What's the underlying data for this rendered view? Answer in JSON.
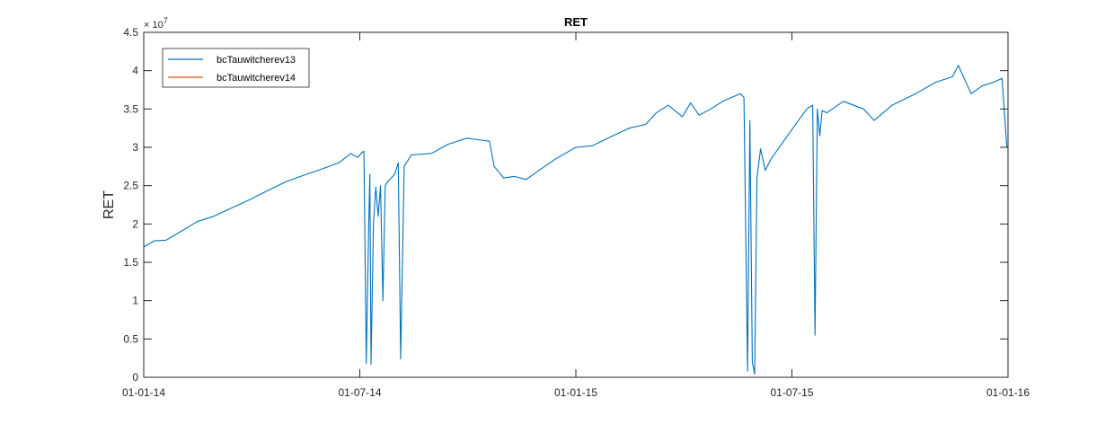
{
  "chart_data": {
    "type": "line",
    "title": "RET",
    "xlabel": "",
    "ylabel": "RET",
    "y_exponent_base": "× 10",
    "y_exponent_power": "7",
    "x_ticks": [
      "01-01-14",
      "01-07-14",
      "01-01-15",
      "01-07-15",
      "01-01-16"
    ],
    "y_ticks": [
      "0",
      "0.5",
      "1",
      "1.5",
      "2",
      "2.5",
      "3",
      "3.5",
      "4",
      "4.5"
    ],
    "ylim": [
      0,
      45000000
    ],
    "xlim": [
      "2014-01-01",
      "2016-01-01"
    ],
    "grid": false,
    "legend_position": "top-left",
    "series": [
      {
        "name": "bcTauwitcherev13",
        "color": "#0072BD",
        "points": [
          [
            "2014-01-01",
            17000000
          ],
          [
            "2014-01-10",
            17800000
          ],
          [
            "2014-01-20",
            17900000
          ],
          [
            "2014-02-01",
            19000000
          ],
          [
            "2014-02-15",
            20300000
          ],
          [
            "2014-03-01",
            21000000
          ],
          [
            "2014-03-15",
            22000000
          ],
          [
            "2014-04-01",
            23200000
          ],
          [
            "2014-04-15",
            24300000
          ],
          [
            "2014-05-01",
            25500000
          ],
          [
            "2014-05-15",
            26300000
          ],
          [
            "2014-06-01",
            27200000
          ],
          [
            "2014-06-15",
            28000000
          ],
          [
            "2014-06-25",
            29200000
          ],
          [
            "2014-06-28",
            28900000
          ],
          [
            "2014-07-01",
            28700000
          ],
          [
            "2014-07-04",
            29300000
          ],
          [
            "2014-07-06",
            29500000
          ],
          [
            "2014-07-08",
            1800000
          ],
          [
            "2014-07-10",
            20000000
          ],
          [
            "2014-07-11",
            26500000
          ],
          [
            "2014-07-12",
            1700000
          ],
          [
            "2014-07-14",
            20000000
          ],
          [
            "2014-07-16",
            24800000
          ],
          [
            "2014-07-18",
            21000000
          ],
          [
            "2014-07-20",
            25000000
          ],
          [
            "2014-07-22",
            10000000
          ],
          [
            "2014-07-24",
            25000000
          ],
          [
            "2014-07-26",
            25500000
          ],
          [
            "2014-08-01",
            26500000
          ],
          [
            "2014-08-04",
            28000000
          ],
          [
            "2014-08-06",
            2400000
          ],
          [
            "2014-08-09",
            27500000
          ],
          [
            "2014-08-15",
            29000000
          ],
          [
            "2014-09-01",
            29200000
          ],
          [
            "2014-09-15",
            30400000
          ],
          [
            "2014-10-01",
            31200000
          ],
          [
            "2014-10-10",
            31000000
          ],
          [
            "2014-10-20",
            30800000
          ],
          [
            "2014-10-24",
            27500000
          ],
          [
            "2014-11-01",
            26000000
          ],
          [
            "2014-11-10",
            26200000
          ],
          [
            "2014-11-20",
            25800000
          ],
          [
            "2014-12-01",
            27000000
          ],
          [
            "2014-12-15",
            28500000
          ],
          [
            "2015-01-01",
            30000000
          ],
          [
            "2015-01-15",
            30200000
          ],
          [
            "2015-02-01",
            31500000
          ],
          [
            "2015-02-15",
            32500000
          ],
          [
            "2015-03-01",
            33000000
          ],
          [
            "2015-03-10",
            34500000
          ],
          [
            "2015-03-20",
            35500000
          ],
          [
            "2015-04-01",
            34000000
          ],
          [
            "2015-04-08",
            35800000
          ],
          [
            "2015-04-15",
            34200000
          ],
          [
            "2015-04-25",
            35000000
          ],
          [
            "2015-05-05",
            36000000
          ],
          [
            "2015-05-20",
            37000000
          ],
          [
            "2015-05-23",
            36500000
          ],
          [
            "2015-05-26",
            800000
          ],
          [
            "2015-05-28",
            33500000
          ],
          [
            "2015-05-30",
            2000000
          ],
          [
            "2015-06-01",
            400000
          ],
          [
            "2015-06-03",
            26000000
          ],
          [
            "2015-06-06",
            29800000
          ],
          [
            "2015-06-10",
            27000000
          ],
          [
            "2015-06-15",
            28500000
          ],
          [
            "2015-07-01",
            32000000
          ],
          [
            "2015-07-15",
            35000000
          ],
          [
            "2015-07-20",
            35500000
          ],
          [
            "2015-07-22",
            5500000
          ],
          [
            "2015-07-24",
            35000000
          ],
          [
            "2015-07-26",
            31500000
          ],
          [
            "2015-07-28",
            34800000
          ],
          [
            "2015-08-01",
            34500000
          ],
          [
            "2015-08-15",
            36000000
          ],
          [
            "2015-09-01",
            35000000
          ],
          [
            "2015-09-10",
            33500000
          ],
          [
            "2015-09-25",
            35500000
          ],
          [
            "2015-10-15",
            37000000
          ],
          [
            "2015-11-01",
            38500000
          ],
          [
            "2015-11-15",
            39200000
          ],
          [
            "2015-11-20",
            40700000
          ],
          [
            "2015-11-25",
            39000000
          ],
          [
            "2015-12-01",
            37000000
          ],
          [
            "2015-12-10",
            38000000
          ],
          [
            "2015-12-20",
            38500000
          ],
          [
            "2015-12-27",
            39000000
          ],
          [
            "2015-12-31",
            30000000
          ]
        ]
      },
      {
        "name": "bcTauwitcherev14",
        "color": "#D95319",
        "points": [
          [
            "2014-01-01",
            0
          ],
          [
            "2016-01-01",
            0
          ]
        ]
      }
    ]
  }
}
